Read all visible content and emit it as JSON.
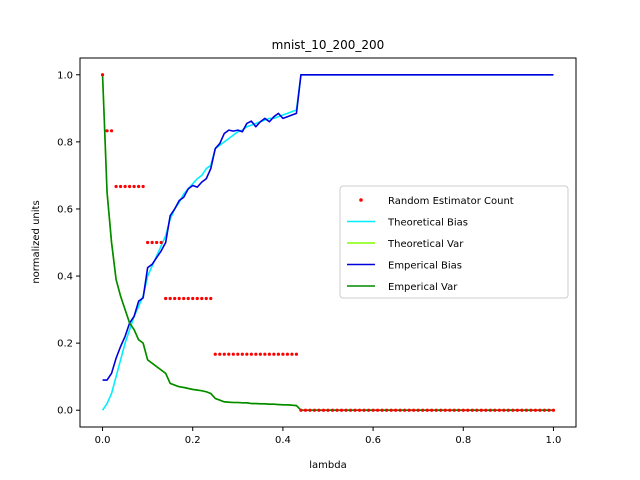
{
  "chart_data": {
    "type": "line",
    "title": "mnist_10_200_200",
    "xlabel": "lambda",
    "ylabel": "normalized units",
    "xlim": [
      -0.05,
      1.05
    ],
    "ylim": [
      -0.05,
      1.05
    ],
    "xticks": [
      0.0,
      0.2,
      0.4,
      0.6,
      0.8,
      1.0
    ],
    "xtick_labels": [
      "0.0",
      "0.2",
      "0.4",
      "0.6",
      "0.8",
      "1.0"
    ],
    "yticks": [
      0.0,
      0.2,
      0.4,
      0.6,
      0.8,
      1.0
    ],
    "ytick_labels": [
      "0.0",
      "0.2",
      "0.4",
      "0.6",
      "0.8",
      "1.0"
    ],
    "grid": false,
    "legend_position": "right",
    "series": [
      {
        "name": "Random Estimator Count",
        "kind": "scatter",
        "color": "#ff0000",
        "x": [
          0.0,
          0.01,
          0.02,
          0.03,
          0.04,
          0.05,
          0.06,
          0.07,
          0.08,
          0.09,
          0.1,
          0.11,
          0.12,
          0.13,
          0.14,
          0.15,
          0.16,
          0.17,
          0.18,
          0.19,
          0.2,
          0.21,
          0.22,
          0.23,
          0.24,
          0.25,
          0.26,
          0.27,
          0.28,
          0.29,
          0.3,
          0.31,
          0.32,
          0.33,
          0.34,
          0.35,
          0.36,
          0.37,
          0.38,
          0.39,
          0.4,
          0.41,
          0.42,
          0.43,
          0.44,
          0.45,
          0.46,
          0.47,
          0.48,
          0.49,
          0.5,
          0.51,
          0.52,
          0.53,
          0.54,
          0.55,
          0.56,
          0.57,
          0.58,
          0.59,
          0.6,
          0.61,
          0.62,
          0.63,
          0.64,
          0.65,
          0.66,
          0.67,
          0.68,
          0.69,
          0.7,
          0.71,
          0.72,
          0.73,
          0.74,
          0.75,
          0.76,
          0.77,
          0.78,
          0.79,
          0.8,
          0.81,
          0.82,
          0.83,
          0.84,
          0.85,
          0.86,
          0.87,
          0.88,
          0.89,
          0.9,
          0.91,
          0.92,
          0.93,
          0.94,
          0.95,
          0.96,
          0.97,
          0.98,
          0.99,
          1.0
        ],
        "y": [
          1.0,
          0.833,
          0.833,
          0.667,
          0.667,
          0.667,
          0.667,
          0.667,
          0.667,
          0.667,
          0.5,
          0.5,
          0.5,
          0.5,
          0.333,
          0.333,
          0.333,
          0.333,
          0.333,
          0.333,
          0.333,
          0.333,
          0.333,
          0.333,
          0.333,
          0.167,
          0.167,
          0.167,
          0.167,
          0.167,
          0.167,
          0.167,
          0.167,
          0.167,
          0.167,
          0.167,
          0.167,
          0.167,
          0.167,
          0.167,
          0.167,
          0.167,
          0.167,
          0.167,
          0.0,
          0.0,
          0.0,
          0.0,
          0.0,
          0.0,
          0.0,
          0.0,
          0.0,
          0.0,
          0.0,
          0.0,
          0.0,
          0.0,
          0.0,
          0.0,
          0.0,
          0.0,
          0.0,
          0.0,
          0.0,
          0.0,
          0.0,
          0.0,
          0.0,
          0.0,
          0.0,
          0.0,
          0.0,
          0.0,
          0.0,
          0.0,
          0.0,
          0.0,
          0.0,
          0.0,
          0.0,
          0.0,
          0.0,
          0.0,
          0.0,
          0.0,
          0.0,
          0.0,
          0.0,
          0.0,
          0.0,
          0.0,
          0.0,
          0.0,
          0.0,
          0.0,
          0.0,
          0.0,
          0.0,
          0.0,
          0.0
        ]
      },
      {
        "name": "Theoretical Bias",
        "kind": "line",
        "color": "#00eeff",
        "x": [
          0.0,
          0.01,
          0.02,
          0.03,
          0.04,
          0.05,
          0.06,
          0.07,
          0.08,
          0.09,
          0.1,
          0.11,
          0.12,
          0.13,
          0.14,
          0.15,
          0.16,
          0.17,
          0.18,
          0.19,
          0.2,
          0.21,
          0.22,
          0.23,
          0.24,
          0.25,
          0.26,
          0.27,
          0.28,
          0.29,
          0.3,
          0.31,
          0.32,
          0.33,
          0.34,
          0.35,
          0.36,
          0.37,
          0.38,
          0.39,
          0.4,
          0.41,
          0.42,
          0.43,
          0.44,
          1.0
        ],
        "y": [
          0.0,
          0.02,
          0.05,
          0.1,
          0.15,
          0.2,
          0.24,
          0.28,
          0.31,
          0.34,
          0.4,
          0.43,
          0.46,
          0.49,
          0.52,
          0.57,
          0.6,
          0.62,
          0.645,
          0.66,
          0.675,
          0.69,
          0.7,
          0.72,
          0.73,
          0.78,
          0.79,
          0.8,
          0.81,
          0.82,
          0.83,
          0.835,
          0.845,
          0.85,
          0.855,
          0.86,
          0.865,
          0.87,
          0.87,
          0.875,
          0.88,
          0.885,
          0.89,
          0.895,
          1.0,
          1.0
        ]
      },
      {
        "name": "Theoretical Var",
        "kind": "line",
        "color": "#80ff00",
        "x": [
          0.0,
          0.01,
          0.02,
          0.03,
          0.04,
          0.05,
          0.06,
          0.07,
          0.08,
          0.09,
          0.1,
          0.11,
          0.12,
          0.13,
          0.14,
          0.15,
          0.16,
          0.17,
          0.18,
          0.19,
          0.2,
          0.21,
          0.22,
          0.23,
          0.24,
          0.25,
          0.26,
          0.27,
          0.28,
          0.29,
          0.3,
          0.31,
          0.32,
          0.33,
          0.34,
          0.35,
          0.36,
          0.37,
          0.38,
          0.39,
          0.4,
          0.41,
          0.42,
          0.43,
          0.44,
          1.0
        ],
        "y": [
          1.0,
          0.65,
          0.5,
          0.39,
          0.34,
          0.3,
          0.26,
          0.24,
          0.21,
          0.2,
          0.15,
          0.14,
          0.13,
          0.12,
          0.11,
          0.08,
          0.075,
          0.07,
          0.068,
          0.065,
          0.062,
          0.06,
          0.058,
          0.055,
          0.05,
          0.035,
          0.03,
          0.025,
          0.024,
          0.023,
          0.023,
          0.022,
          0.022,
          0.02,
          0.02,
          0.019,
          0.019,
          0.018,
          0.018,
          0.017,
          0.016,
          0.016,
          0.015,
          0.014,
          0.0,
          0.0
        ]
      },
      {
        "name": "Emperical Bias",
        "kind": "line",
        "color": "#0000dd",
        "x": [
          0.0,
          0.01,
          0.02,
          0.03,
          0.04,
          0.05,
          0.06,
          0.07,
          0.08,
          0.09,
          0.1,
          0.11,
          0.12,
          0.13,
          0.14,
          0.15,
          0.16,
          0.17,
          0.18,
          0.19,
          0.2,
          0.21,
          0.22,
          0.23,
          0.24,
          0.25,
          0.26,
          0.27,
          0.28,
          0.29,
          0.3,
          0.31,
          0.32,
          0.33,
          0.34,
          0.35,
          0.36,
          0.37,
          0.38,
          0.39,
          0.4,
          0.41,
          0.42,
          0.43,
          0.44,
          1.0
        ],
        "y": [
          0.09,
          0.09,
          0.11,
          0.155,
          0.19,
          0.22,
          0.26,
          0.28,
          0.325,
          0.335,
          0.425,
          0.435,
          0.455,
          0.475,
          0.5,
          0.58,
          0.6,
          0.625,
          0.635,
          0.66,
          0.67,
          0.665,
          0.68,
          0.69,
          0.72,
          0.78,
          0.795,
          0.825,
          0.835,
          0.832,
          0.835,
          0.83,
          0.855,
          0.862,
          0.845,
          0.86,
          0.87,
          0.86,
          0.875,
          0.885,
          0.87,
          0.875,
          0.88,
          0.885,
          1.0,
          1.0
        ]
      },
      {
        "name": "Emperical Var",
        "kind": "line",
        "color": "#008800",
        "x": [
          0.0,
          0.01,
          0.02,
          0.03,
          0.04,
          0.05,
          0.06,
          0.07,
          0.08,
          0.09,
          0.1,
          0.11,
          0.12,
          0.13,
          0.14,
          0.15,
          0.16,
          0.17,
          0.18,
          0.19,
          0.2,
          0.21,
          0.22,
          0.23,
          0.24,
          0.25,
          0.26,
          0.27,
          0.28,
          0.29,
          0.3,
          0.31,
          0.32,
          0.33,
          0.34,
          0.35,
          0.36,
          0.37,
          0.38,
          0.39,
          0.4,
          0.41,
          0.42,
          0.43,
          0.44,
          1.0
        ],
        "y": [
          1.0,
          0.65,
          0.5,
          0.39,
          0.34,
          0.3,
          0.26,
          0.24,
          0.21,
          0.2,
          0.15,
          0.14,
          0.13,
          0.12,
          0.11,
          0.08,
          0.075,
          0.07,
          0.068,
          0.065,
          0.062,
          0.06,
          0.058,
          0.055,
          0.05,
          0.035,
          0.03,
          0.025,
          0.024,
          0.023,
          0.023,
          0.022,
          0.022,
          0.02,
          0.02,
          0.019,
          0.019,
          0.018,
          0.018,
          0.017,
          0.016,
          0.016,
          0.015,
          0.014,
          0.0,
          0.0
        ]
      }
    ]
  }
}
